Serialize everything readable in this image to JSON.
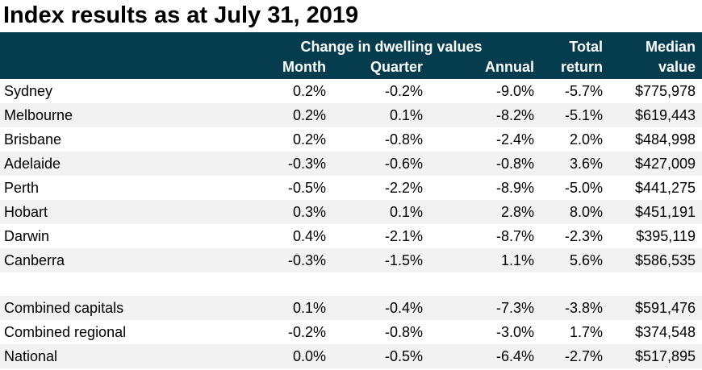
{
  "title": "Index results as at July 31, 2019",
  "header": {
    "group": "Change in dwelling values",
    "month": "Month",
    "quarter": "Quarter",
    "annual": "Annual",
    "total_1": "Total",
    "total_2": "return",
    "median_1": "Median",
    "median_2": "value"
  },
  "rows": [
    {
      "name": "Sydney",
      "month": "0.2%",
      "quarter": "-0.2%",
      "annual": "-9.0%",
      "total": "-5.7%",
      "median": "$775,978"
    },
    {
      "name": "Melbourne",
      "month": "0.2%",
      "quarter": "0.1%",
      "annual": "-8.2%",
      "total": "-5.1%",
      "median": "$619,443"
    },
    {
      "name": "Brisbane",
      "month": "0.2%",
      "quarter": "-0.8%",
      "annual": "-2.4%",
      "total": "2.0%",
      "median": "$484,998"
    },
    {
      "name": "Adelaide",
      "month": "-0.3%",
      "quarter": "-0.6%",
      "annual": "-0.8%",
      "total": "3.6%",
      "median": "$427,009"
    },
    {
      "name": "Perth",
      "month": "-0.5%",
      "quarter": "-2.2%",
      "annual": "-8.9%",
      "total": "-5.0%",
      "median": "$441,275"
    },
    {
      "name": "Hobart",
      "month": "0.3%",
      "quarter": "0.1%",
      "annual": "2.8%",
      "total": "8.0%",
      "median": "$451,191"
    },
    {
      "name": "Darwin",
      "month": "0.4%",
      "quarter": "-2.1%",
      "annual": "-8.7%",
      "total": "-2.3%",
      "median": "$395,119"
    },
    {
      "name": "Canberra",
      "month": "-0.3%",
      "quarter": "-1.5%",
      "annual": "1.1%",
      "total": "5.6%",
      "median": "$586,535"
    },
    {
      "name": "Combined capitals",
      "month": "0.1%",
      "quarter": "-0.4%",
      "annual": "-7.3%",
      "total": "-3.8%",
      "median": "$591,476"
    },
    {
      "name": "Combined regional",
      "month": "-0.2%",
      "quarter": "-0.8%",
      "annual": "-3.0%",
      "total": "1.7%",
      "median": "$374,548"
    },
    {
      "name": "National",
      "month": "0.0%",
      "quarter": "-0.5%",
      "annual": "-6.4%",
      "total": "-2.7%",
      "median": "$517,895"
    }
  ],
  "colors": {
    "header_bg": "#063d4e",
    "header_text": "#ffffff",
    "row_shade": "#f2f2f2"
  }
}
